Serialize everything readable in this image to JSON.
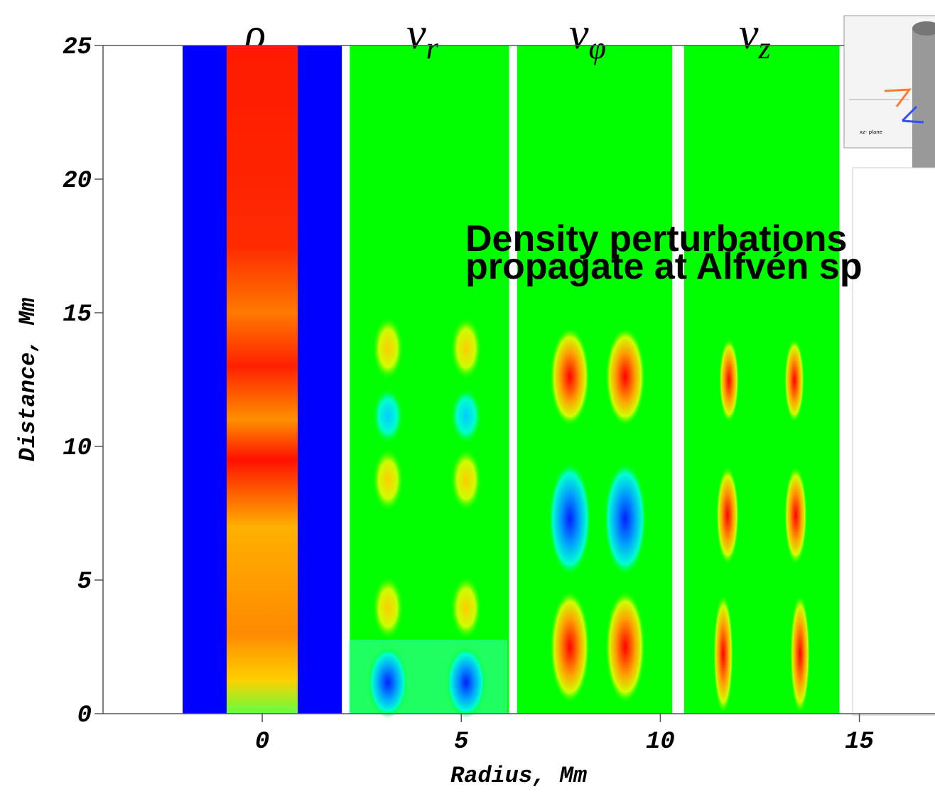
{
  "chart_data": {
    "type": "image",
    "xlabel": "Radius, Mm",
    "ylabel": "Distance, Mm",
    "xlim": [
      -4,
      16.9
    ],
    "ylim": [
      0,
      25
    ],
    "xticks": [
      0,
      5,
      10,
      15
    ],
    "yticks": [
      0,
      5,
      10,
      15,
      20,
      25
    ],
    "panels": [
      {
        "title": "ρ",
        "extent": [
          -2,
          2
        ]
      },
      {
        "title": "v",
        "subscript": "r",
        "extent": [
          2.2,
          6.2
        ]
      },
      {
        "title": "v",
        "subscript": "φ",
        "extent": [
          6.4,
          10.3
        ]
      },
      {
        "title": "v",
        "subscript": "z",
        "extent": [
          10.6,
          14.5
        ]
      }
    ],
    "annotation": [
      "Density perturbations",
      "propagate at Alfvén sp"
    ],
    "inset_label": "xz- plane"
  }
}
